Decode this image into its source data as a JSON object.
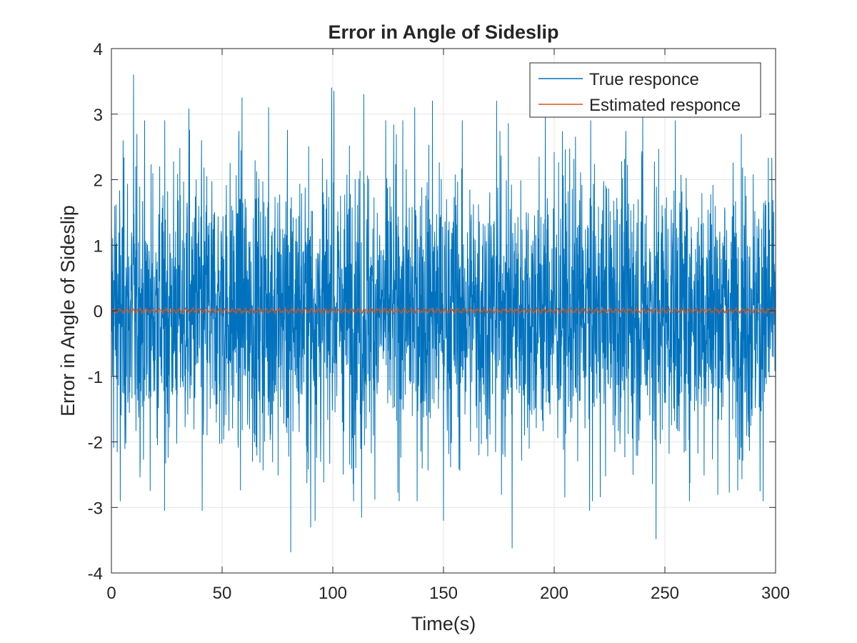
{
  "chart_data": {
    "type": "line",
    "title": "Error in Angle of Sideslip",
    "xlabel": "Time(s)",
    "ylabel": "Error in Angle of Sideslip",
    "xlim": [
      0,
      300
    ],
    "ylim": [
      -4,
      4
    ],
    "xticks": [
      0,
      50,
      100,
      150,
      200,
      250,
      300
    ],
    "yticks": [
      -4,
      -3,
      -2,
      -1,
      0,
      1,
      2,
      3,
      4
    ],
    "xtick_labels": [
      "0",
      "50",
      "100",
      "150",
      "200",
      "250",
      "300"
    ],
    "ytick_labels": [
      "-4",
      "-3",
      "-2",
      "-1",
      "0",
      "1",
      "2",
      "3",
      "4"
    ],
    "grid": true,
    "legend_position": "top-right",
    "series": [
      {
        "name": "True responce",
        "color": "#0072BD",
        "description_kind": "noise",
        "t_range": [
          0,
          300
        ],
        "typical_band": [
          -1.5,
          1.5
        ],
        "peaks": [
          {
            "x": 10,
            "y": 3.6
          },
          {
            "x": 99.5,
            "y": 3.4
          },
          {
            "x": 100.5,
            "y": 3.35
          },
          {
            "x": 35,
            "y": 3.08
          },
          {
            "x": 59,
            "y": 3.25
          },
          {
            "x": 71,
            "y": 3.1
          },
          {
            "x": 114,
            "y": 3.3
          },
          {
            "x": 137,
            "y": 3.1
          },
          {
            "x": 145,
            "y": 3.2
          },
          {
            "x": 174,
            "y": 3.2
          },
          {
            "x": 196,
            "y": 3.05
          },
          {
            "x": 240,
            "y": 3.15
          },
          {
            "x": 81,
            "y": -3.68
          },
          {
            "x": 90,
            "y": -3.3
          },
          {
            "x": 92,
            "y": -3.2
          },
          {
            "x": 113,
            "y": -3.15
          },
          {
            "x": 150,
            "y": -3.2
          },
          {
            "x": 181,
            "y": -3.62
          },
          {
            "x": 24,
            "y": -3.05
          },
          {
            "x": 41,
            "y": -3.05
          },
          {
            "x": 216,
            "y": -3.05
          },
          {
            "x": 246,
            "y": -3.48
          },
          {
            "x": 293,
            "y": -2.75
          },
          {
            "x": 4,
            "y": -2.9
          }
        ]
      },
      {
        "name": "Estimated responce",
        "color": "#D95319",
        "description_kind": "near-zero",
        "t_range": [
          0,
          300
        ],
        "typical_band": [
          -0.05,
          0.05
        ]
      }
    ]
  }
}
